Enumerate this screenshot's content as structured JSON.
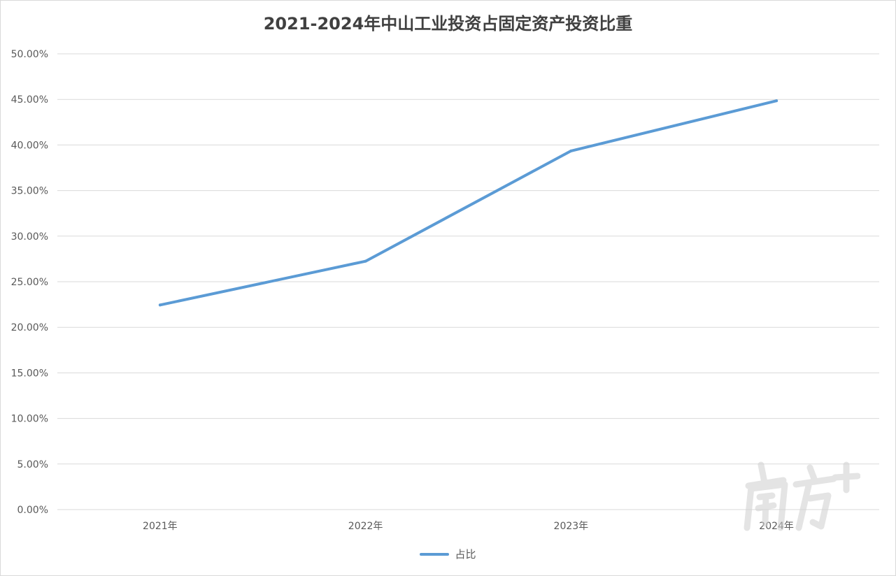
{
  "chart_data": {
    "type": "line",
    "title": "2021-2024年中山工业投资占固定资产投资比重",
    "categories": [
      "2021年",
      "2022年",
      "2023年",
      "2024年"
    ],
    "series": [
      {
        "name": "占比",
        "values": [
          0.2245,
          0.2725,
          0.3935,
          0.4485
        ],
        "color": "#5b9bd5"
      }
    ],
    "yticks": [
      "0.00%",
      "5.00%",
      "10.00%",
      "15.00%",
      "20.00%",
      "25.00%",
      "30.00%",
      "35.00%",
      "40.00%",
      "45.00%",
      "50.00%"
    ],
    "ylim": [
      0,
      0.5
    ],
    "grid": true,
    "legend_position": "bottom"
  },
  "colors": {
    "series": "#5b9bd5",
    "grid": "#d9d9d9",
    "text": "#595959",
    "title": "#404040"
  },
  "watermark": {
    "icon": "nanfang-plus-logo",
    "text": "南方+"
  }
}
